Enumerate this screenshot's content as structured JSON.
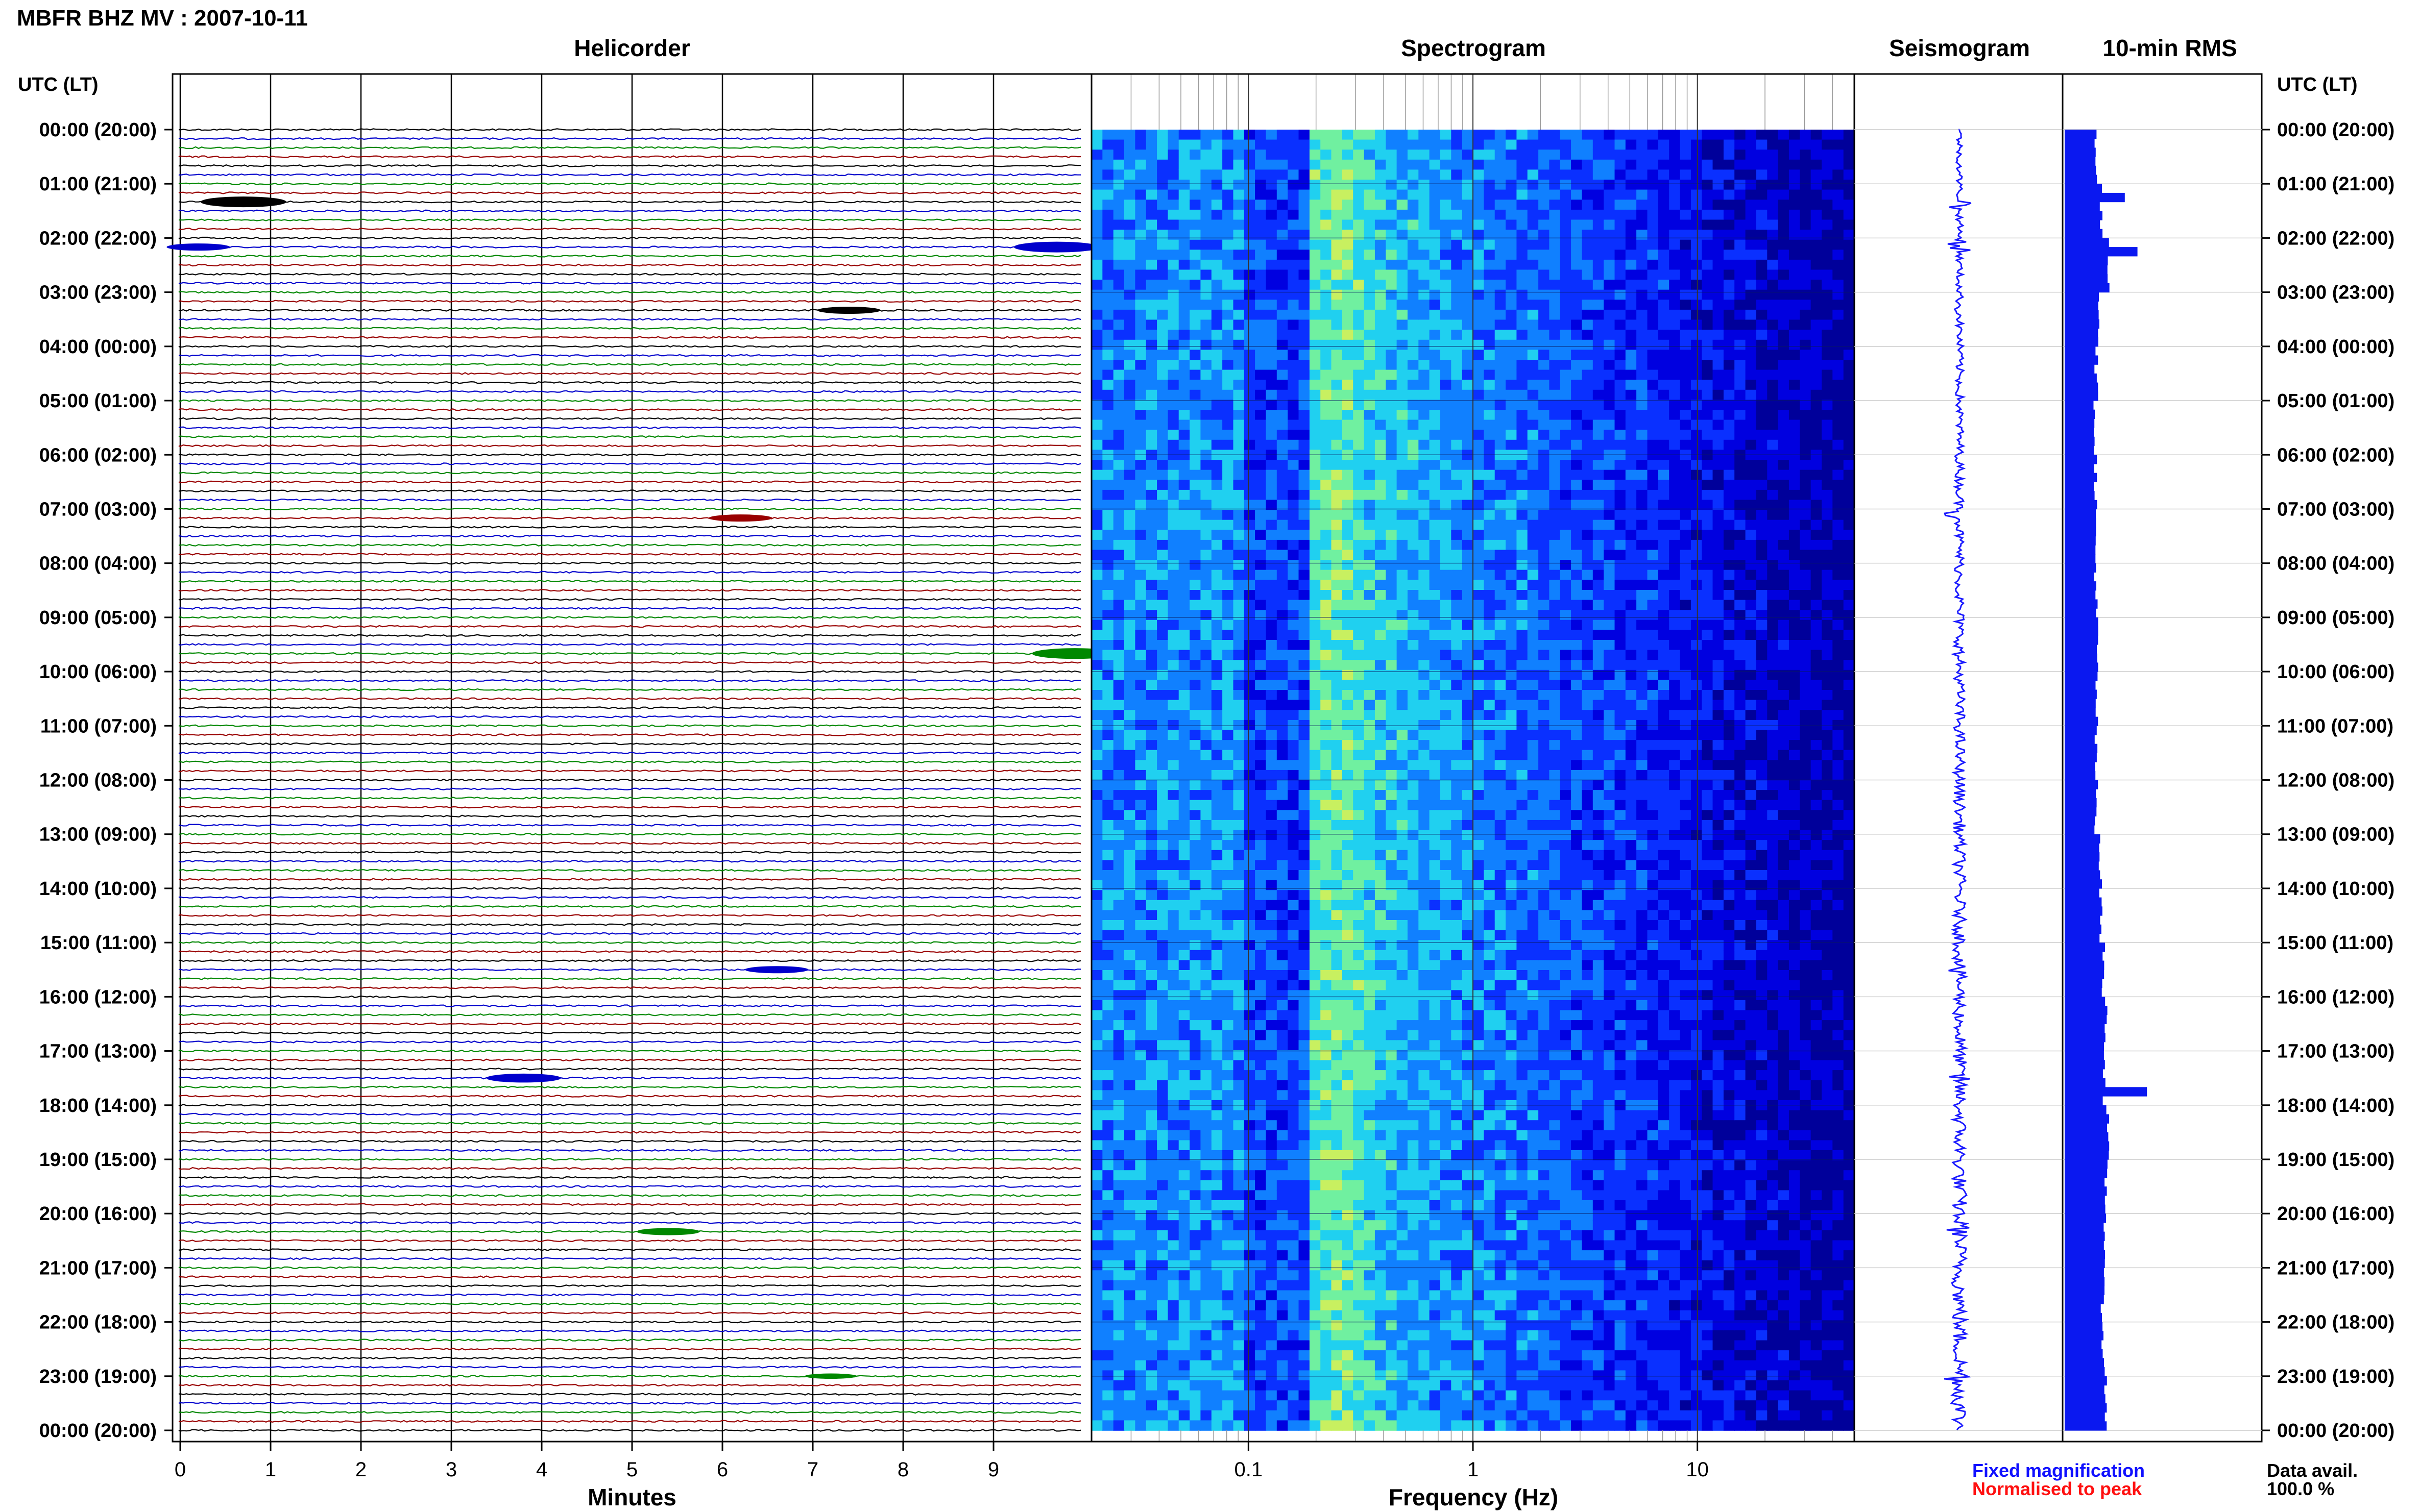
{
  "header": {
    "title": "MBFR BHZ MV : 2007-10-11",
    "panel_titles": [
      "Helicorder",
      "Spectrogram",
      "Seismogram",
      "10-min RMS"
    ],
    "left_axis_label": "UTC (LT)",
    "right_axis_label": "UTC (LT)"
  },
  "footer": {
    "helicorder_xlabel": "Minutes",
    "spectrogram_xlabel": "Frequency (Hz)",
    "legend_fixed": "Fixed magnification",
    "legend_normalised": "Normalised to peak",
    "data_avail_label": "Data avail.",
    "data_avail_value": "100.0 %"
  },
  "colors": {
    "trace_cycle": [
      "#000000",
      "#0000cc",
      "#008800",
      "#990000"
    ],
    "legend_fixed": "#1010ff",
    "legend_normalised": "#ff1010",
    "rms_bar": "#0a18f0",
    "seismogram": "#1a1aff"
  },
  "chart_data": [
    {
      "type": "line",
      "panel": "Helicorder",
      "xlabel": "Minutes",
      "x_ticks": [
        "0",
        "1",
        "2",
        "3",
        "4",
        "5",
        "6",
        "7",
        "8",
        "9"
      ],
      "xlim": [
        0,
        10
      ],
      "time_labels": [
        "00:00 (20:00)",
        "01:00 (21:00)",
        "02:00 (22:00)",
        "03:00 (23:00)",
        "04:00 (00:00)",
        "05:00 (01:00)",
        "06:00 (02:00)",
        "07:00 (03:00)",
        "08:00 (04:00)",
        "09:00 (05:00)",
        "10:00 (06:00)",
        "11:00 (07:00)",
        "12:00 (08:00)",
        "13:00 (09:00)",
        "14:00 (10:00)",
        "15:00 (11:00)",
        "16:00 (12:00)",
        "17:00 (13:00)",
        "18:00 (14:00)",
        "19:00 (15:00)",
        "20:00 (16:00)",
        "21:00 (17:00)",
        "22:00 (18:00)",
        "23:00 (19:00)",
        "00:00 (20:00)"
      ],
      "rows_per_hour": 6,
      "events": [
        {
          "hour": 1.4,
          "minute": 0.7,
          "amp": 3
        },
        {
          "hour": 2.1,
          "minute": 9.7,
          "amp": 3
        },
        {
          "hour": 2.2,
          "minute": 0.2,
          "amp": 2
        },
        {
          "hour": 3.3,
          "minute": 7.4,
          "amp": 2
        },
        {
          "hour": 7.1,
          "minute": 6.2,
          "amp": 2
        },
        {
          "hour": 9.7,
          "minute": 9.9,
          "amp": 3
        },
        {
          "hour": 15.5,
          "minute": 6.6,
          "amp": 2
        },
        {
          "hour": 17.5,
          "minute": 3.8,
          "amp": 2.5
        },
        {
          "hour": 20.3,
          "minute": 5.4,
          "amp": 2
        },
        {
          "hour": 23.0,
          "minute": 7.2,
          "amp": 1.5
        }
      ]
    },
    {
      "type": "heatmap",
      "panel": "Spectrogram",
      "xlabel": "Frequency (Hz)",
      "x_scale": "log",
      "xlim": [
        0.02,
        50
      ],
      "x_ticks": [
        "0.1",
        "1",
        "10"
      ],
      "peak_frequency_hz": 0.25,
      "colormap": [
        "#00009a",
        "#0000e0",
        "#0a30ff",
        "#1080ff",
        "#20d0f0",
        "#70f0a0",
        "#c8f060"
      ]
    },
    {
      "type": "line",
      "panel": "Seismogram",
      "legend": "Fixed magnification"
    },
    {
      "type": "bar",
      "panel": "10-min RMS",
      "orientation": "horizontal",
      "hour_values": [
        1.0,
        1.14,
        1.4,
        1.1,
        1.0,
        0.97,
        0.98,
        0.97,
        0.99,
        1.02,
        1.0,
        0.98,
        1.0,
        1.12,
        1.15,
        1.22,
        1.3,
        1.26,
        1.35,
        1.3,
        1.28,
        1.2,
        1.22,
        1.3
      ],
      "spikes": [
        {
          "hour": 1.2,
          "value": 1.9
        },
        {
          "hour": 2.1,
          "value": 2.3
        },
        {
          "hour": 17.6,
          "value": 2.6
        }
      ]
    }
  ]
}
